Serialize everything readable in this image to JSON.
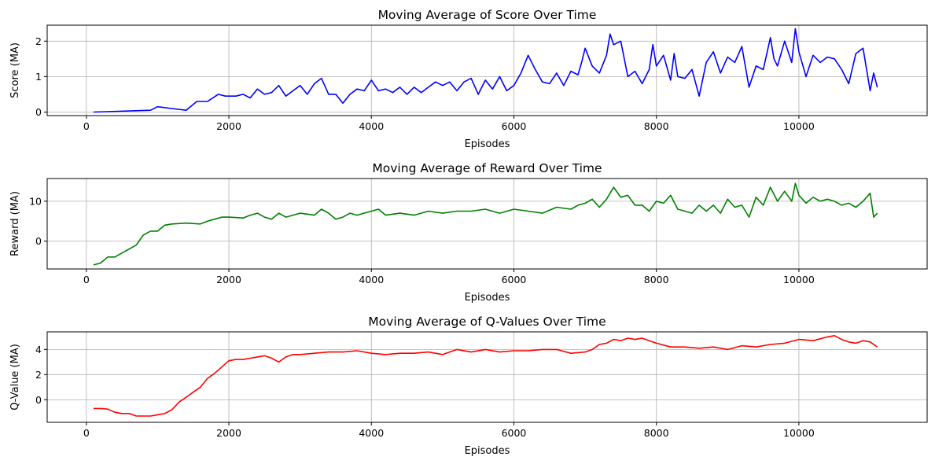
{
  "chart_data": [
    {
      "type": "line",
      "title": "Moving Average of Score Over Time",
      "xlabel": "Episodes",
      "ylabel": "Score (MA)",
      "xlim": [
        -550,
        11800
      ],
      "ylim": [
        -0.1,
        2.45
      ],
      "xticks": [
        0,
        2000,
        4000,
        6000,
        8000,
        10000
      ],
      "yticks": [
        0,
        1,
        2
      ],
      "grid": true,
      "color": "#0000ff",
      "series": [
        {
          "x": [
            100,
            900,
            1000,
            1200,
            1400,
            1550,
            1700,
            1850,
            1950,
            2100,
            2200,
            2300,
            2400,
            2500,
            2600,
            2700,
            2800,
            2900,
            3000,
            3100,
            3200,
            3300,
            3400,
            3500,
            3600,
            3700,
            3800,
            3900,
            4000,
            4100,
            4200,
            4300,
            4400,
            4500,
            4600,
            4700,
            4800,
            4900,
            5000,
            5100,
            5200,
            5300,
            5400,
            5500,
            5600,
            5700,
            5800,
            5900,
            6000,
            6100,
            6200,
            6300,
            6400,
            6500,
            6600,
            6700,
            6800,
            6900,
            6950,
            7000,
            7100,
            7200,
            7300,
            7350,
            7400,
            7500,
            7600,
            7700,
            7800,
            7900,
            7950,
            8000,
            8100,
            8200,
            8250,
            8300,
            8400,
            8500,
            8600,
            8700,
            8800,
            8900,
            9000,
            9100,
            9200,
            9300,
            9400,
            9500,
            9600,
            9650,
            9700,
            9800,
            9900,
            9950,
            10000,
            10100,
            10200,
            10300,
            10400,
            10500,
            10600,
            10700,
            10800,
            10900,
            11000,
            11050,
            11100
          ],
          "y": [
            0,
            0.05,
            0.15,
            0.1,
            0.05,
            0.3,
            0.3,
            0.5,
            0.45,
            0.45,
            0.5,
            0.4,
            0.65,
            0.5,
            0.55,
            0.75,
            0.45,
            0.6,
            0.75,
            0.5,
            0.8,
            0.95,
            0.5,
            0.5,
            0.25,
            0.5,
            0.65,
            0.6,
            0.9,
            0.6,
            0.65,
            0.55,
            0.7,
            0.5,
            0.7,
            0.55,
            0.7,
            0.85,
            0.75,
            0.85,
            0.6,
            0.85,
            0.95,
            0.5,
            0.9,
            0.65,
            1.0,
            0.6,
            0.75,
            1.1,
            1.6,
            1.2,
            0.85,
            0.8,
            1.1,
            0.75,
            1.15,
            1.05,
            1.4,
            1.8,
            1.3,
            1.1,
            1.6,
            2.2,
            1.9,
            2.0,
            1.0,
            1.15,
            0.8,
            1.2,
            1.9,
            1.3,
            1.6,
            0.9,
            1.65,
            1.0,
            0.95,
            1.2,
            0.45,
            1.4,
            1.7,
            1.1,
            1.55,
            1.4,
            1.85,
            0.7,
            1.3,
            1.2,
            2.1,
            1.5,
            1.3,
            2.0,
            1.4,
            2.35,
            1.7,
            1.0,
            1.6,
            1.4,
            1.55,
            1.5,
            1.2,
            0.8,
            1.65,
            1.8,
            0.6,
            1.1,
            0.7
          ]
        }
      ]
    },
    {
      "type": "line",
      "title": "Moving Average of Reward Over Time",
      "xlabel": "Episodes",
      "ylabel": "Reward (MA)",
      "xlim": [
        -550,
        11800
      ],
      "ylim": [
        -7,
        15.7
      ],
      "xticks": [
        0,
        2000,
        4000,
        6000,
        8000,
        10000
      ],
      "yticks": [
        0,
        10
      ],
      "grid": true,
      "color": "#008000",
      "series": [
        {
          "x": [
            100,
            200,
            300,
            400,
            500,
            600,
            700,
            800,
            900,
            1000,
            1100,
            1200,
            1400,
            1600,
            1700,
            1800,
            1900,
            2000,
            2200,
            2300,
            2400,
            2500,
            2600,
            2700,
            2800,
            3000,
            3200,
            3300,
            3400,
            3500,
            3600,
            3700,
            3800,
            4000,
            4100,
            4200,
            4400,
            4600,
            4800,
            5000,
            5200,
            5400,
            5600,
            5800,
            6000,
            6200,
            6400,
            6600,
            6800,
            6900,
            7000,
            7100,
            7200,
            7300,
            7400,
            7500,
            7600,
            7700,
            7800,
            7900,
            8000,
            8100,
            8200,
            8300,
            8400,
            8500,
            8600,
            8700,
            8800,
            8900,
            9000,
            9100,
            9200,
            9300,
            9400,
            9500,
            9600,
            9700,
            9800,
            9900,
            9950,
            10000,
            10100,
            10200,
            10300,
            10400,
            10500,
            10600,
            10700,
            10800,
            10900,
            11000,
            11050,
            11100
          ],
          "y": [
            -6,
            -5.5,
            -4,
            -4,
            -3,
            -2,
            -1,
            1.5,
            2.5,
            2.5,
            4,
            4.3,
            4.5,
            4.3,
            5,
            5.5,
            6,
            6,
            5.8,
            6.5,
            7,
            6,
            5.5,
            7,
            6,
            7,
            6.5,
            8,
            7,
            5.5,
            6,
            7,
            6.5,
            7.5,
            8,
            6.5,
            7,
            6.5,
            7.5,
            7,
            7.5,
            7.5,
            8,
            7,
            8,
            7.5,
            7,
            8.5,
            8,
            9,
            9.5,
            10.5,
            8.5,
            10.5,
            13.5,
            11,
            11.5,
            9,
            9,
            7.5,
            10,
            9.5,
            11.5,
            8,
            7.5,
            7,
            9,
            7.5,
            9,
            7,
            10.5,
            8.5,
            9,
            6,
            11,
            9,
            13.5,
            10,
            12.5,
            10,
            14.5,
            11.5,
            9.5,
            11,
            10,
            10.5,
            10,
            9,
            9.5,
            8.5,
            10,
            12,
            6,
            7
          ]
        }
      ]
    },
    {
      "type": "line",
      "title": "Moving Average of Q-Values Over Time",
      "xlabel": "Episodes",
      "ylabel": "Q-Value (MA)",
      "xlim": [
        -550,
        11800
      ],
      "ylim": [
        -1.8,
        5.4
      ],
      "xticks": [
        0,
        2000,
        4000,
        6000,
        8000,
        10000
      ],
      "yticks": [
        0,
        2,
        4
      ],
      "grid": true,
      "color": "#ff0000",
      "series": [
        {
          "x": [
            100,
            200,
            300,
            400,
            500,
            600,
            700,
            800,
            900,
            1000,
            1100,
            1200,
            1300,
            1400,
            1500,
            1600,
            1700,
            1800,
            1900,
            2000,
            2100,
            2200,
            2300,
            2400,
            2500,
            2600,
            2700,
            2800,
            2900,
            3000,
            3200,
            3400,
            3600,
            3800,
            4000,
            4200,
            4400,
            4600,
            4800,
            5000,
            5200,
            5400,
            5600,
            5800,
            6000,
            6200,
            6400,
            6600,
            6800,
            7000,
            7100,
            7200,
            7300,
            7400,
            7500,
            7600,
            7700,
            7800,
            7900,
            8000,
            8200,
            8400,
            8600,
            8800,
            9000,
            9200,
            9400,
            9600,
            9800,
            10000,
            10200,
            10400,
            10500,
            10600,
            10700,
            10800,
            10900,
            11000,
            11100
          ],
          "y": [
            -0.7,
            -0.7,
            -0.75,
            -1.0,
            -1.1,
            -1.1,
            -1.3,
            -1.3,
            -1.3,
            -1.2,
            -1.1,
            -0.8,
            -0.2,
            0.2,
            0.6,
            1.0,
            1.7,
            2.1,
            2.6,
            3.1,
            3.2,
            3.2,
            3.3,
            3.4,
            3.5,
            3.3,
            3.0,
            3.4,
            3.6,
            3.6,
            3.7,
            3.8,
            3.8,
            3.9,
            3.7,
            3.6,
            3.7,
            3.7,
            3.8,
            3.6,
            4.0,
            3.8,
            4.0,
            3.8,
            3.9,
            3.9,
            4.0,
            4.0,
            3.7,
            3.8,
            4.0,
            4.4,
            4.5,
            4.8,
            4.7,
            4.9,
            4.8,
            4.9,
            4.7,
            4.5,
            4.2,
            4.2,
            4.1,
            4.2,
            4.0,
            4.3,
            4.2,
            4.4,
            4.5,
            4.8,
            4.7,
            5.0,
            5.1,
            4.8,
            4.6,
            4.5,
            4.7,
            4.6,
            4.2
          ]
        }
      ]
    }
  ]
}
